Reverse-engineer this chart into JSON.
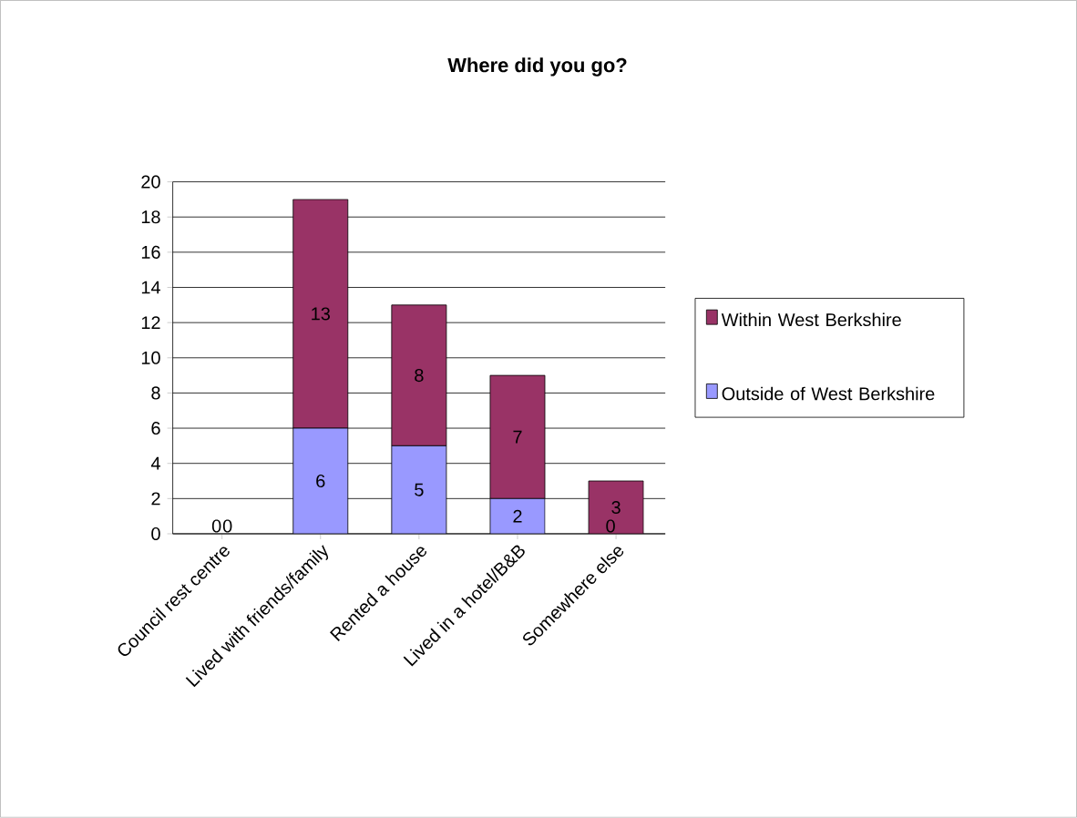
{
  "chart_data": {
    "type": "bar",
    "title": "Where did you go?",
    "stacked": true,
    "categories": [
      "Council rest centre",
      "Lived with friends/family",
      "Rented a house",
      "Lived in a hotel/B&B",
      "Somewhere else"
    ],
    "series": [
      {
        "name": "Outside of West Berkshire",
        "color": "#9999ff",
        "values": [
          0,
          6,
          5,
          2,
          0
        ]
      },
      {
        "name": "Within West Berkshire",
        "color": "#993366",
        "values": [
          0,
          13,
          8,
          7,
          3
        ]
      }
    ],
    "ylim": [
      0,
      20
    ],
    "yticks": [
      0,
      2,
      4,
      6,
      8,
      10,
      12,
      14,
      16,
      18,
      20
    ],
    "grid": "y",
    "legend": "right",
    "data_labels": true
  }
}
